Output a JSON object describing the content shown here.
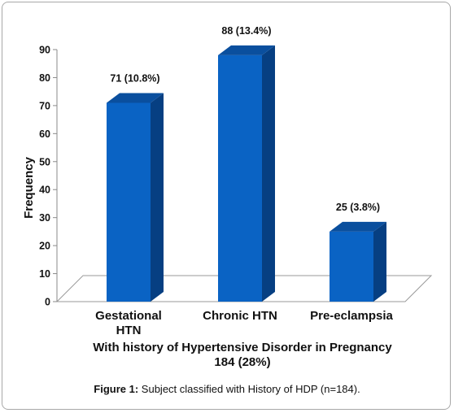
{
  "chart_data": {
    "type": "bar",
    "categories": [
      "Gestational HTN",
      "Chronic HTN",
      "Pre-eclampsia"
    ],
    "category_lines": [
      [
        "Gestational",
        "HTN"
      ],
      [
        "Chronic HTN"
      ],
      [
        "Pre-eclampsia"
      ]
    ],
    "values": [
      71,
      88,
      25
    ],
    "data_labels": [
      "71 (10.8%)",
      "88 (13.4%)",
      "25 (3.8%)"
    ],
    "ylabel": "Frequency",
    "xlabel_lines": [
      "With history of Hypertensive Disorder in Pregnancy",
      "184 (28%)"
    ],
    "ylim": [
      0,
      90
    ],
    "yticks": [
      0,
      10,
      20,
      30,
      40,
      50,
      60,
      70,
      80,
      90
    ],
    "bar_color": "#0a63c4",
    "bar_side_color": "#063f82",
    "bar_top_color": "#0a4f9e",
    "grid": false,
    "legend": "none"
  },
  "caption": {
    "prefix": "Figure 1:",
    "text": " Subject classified with History of HDP (n=184)."
  }
}
